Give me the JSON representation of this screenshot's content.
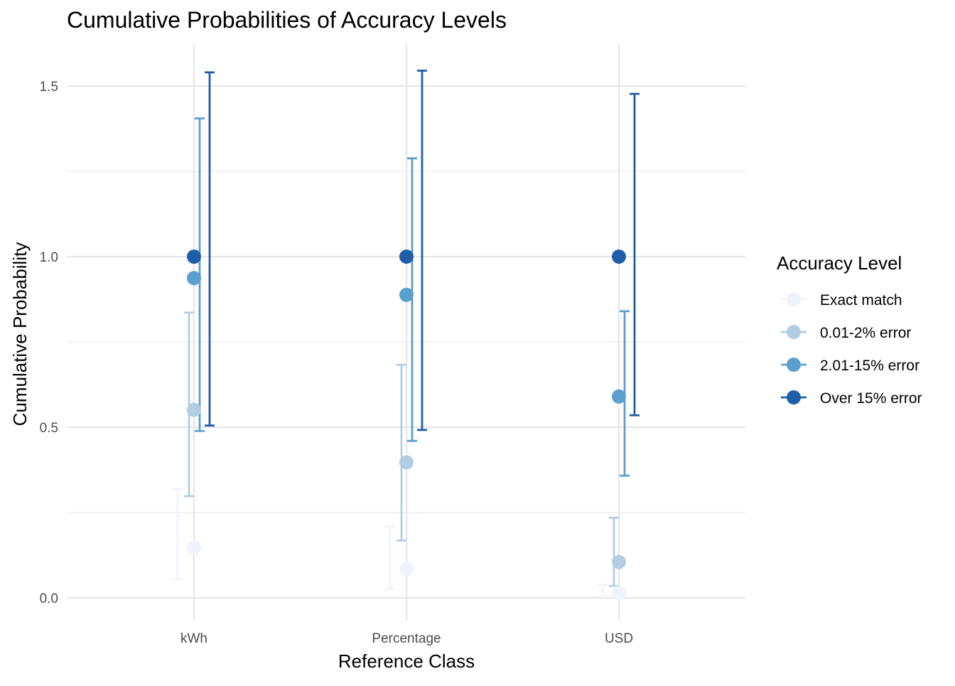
{
  "chart_data": {
    "type": "scatter",
    "title": "Cumulative Probabilities of Accuracy Levels",
    "xlabel": "Reference Class",
    "ylabel": "Cumulative Probability",
    "categories": [
      "kWh",
      "Percentage",
      "USD"
    ],
    "ylim": [
      -0.07,
      1.62
    ],
    "y_ticks": [
      0.0,
      0.5,
      1.0,
      1.5
    ],
    "y_tick_labels": [
      "0.0",
      "0.5",
      "1.0",
      "1.5"
    ],
    "y_minor_ticks": [
      0.25,
      0.75,
      1.25
    ],
    "grid": true,
    "legend": {
      "title": "Accuracy Level",
      "position": "right"
    },
    "series": [
      {
        "name": "Exact match",
        "color": "#eff3ff",
        "values": [
          0.148,
          0.085,
          0.015
        ],
        "lower": [
          0.055,
          0.025,
          0.003
        ],
        "upper": [
          0.318,
          0.21,
          0.038
        ]
      },
      {
        "name": "0.01-2% error",
        "color": "#b3cde3",
        "values": [
          0.551,
          0.397,
          0.105
        ],
        "lower": [
          0.298,
          0.168,
          0.035
        ],
        "upper": [
          0.836,
          0.683,
          0.235
        ]
      },
      {
        "name": "2.01-15% error",
        "color": "#5b9fcf",
        "values": [
          0.937,
          0.888,
          0.59
        ],
        "lower": [
          0.489,
          0.46,
          0.358
        ],
        "upper": [
          1.405,
          1.288,
          0.84
        ]
      },
      {
        "name": "Over 15% error",
        "color": "#1f5fa9",
        "values": [
          1.0,
          1.0,
          1.0
        ],
        "lower": [
          0.505,
          0.492,
          0.535
        ],
        "upper": [
          1.54,
          1.545,
          1.477
        ]
      }
    ]
  }
}
